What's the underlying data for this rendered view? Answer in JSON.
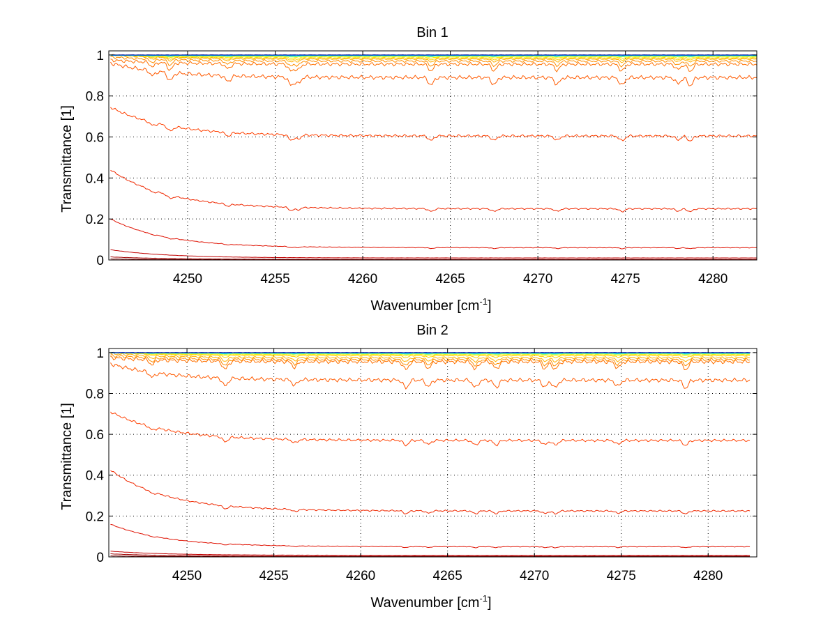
{
  "chart_data": [
    {
      "type": "line",
      "title": "Bin 1",
      "xlabel": "Wavenumber [cm",
      "xlabel_sup": "-1",
      "xlabel_end": "]",
      "ylabel": "Transmittance [1]",
      "xlim": [
        4245.5,
        4282.5
      ],
      "ylim": [
        0,
        1.02
      ],
      "xticks": [
        4250,
        4255,
        4260,
        4265,
        4270,
        4275,
        4280
      ],
      "yticks": [
        0,
        0.2,
        0.4,
        0.6,
        0.8,
        1
      ],
      "ytick_labels": [
        "0",
        "0.2",
        "0.4",
        "0.6",
        "0.8",
        "1"
      ],
      "grid": true,
      "x_range": [
        4245.6,
        4282.5
      ],
      "absorption_lines": [
        4248.0,
        4249.0,
        4252.3,
        4255.9,
        4256.3,
        4263.9,
        4267.5,
        4271.1,
        4274.8,
        4278.0,
        4278.7
      ],
      "series": [
        {
          "color": "#00008f",
          "start": 1.0,
          "end": 1.0,
          "rise_amp": 0.0,
          "depth": 0.0
        },
        {
          "color": "#0050ff",
          "start": 1.0,
          "end": 1.0,
          "rise_amp": 0.0,
          "depth": 0.0
        },
        {
          "color": "#00bfff",
          "start": 1.0,
          "end": 0.998,
          "rise_amp": 0.0,
          "depth": 0.002
        },
        {
          "color": "#40ffbf",
          "start": 1.0,
          "end": 0.996,
          "rise_amp": 0.004,
          "depth": 0.003
        },
        {
          "color": "#bfff40",
          "start": 1.0,
          "end": 0.994,
          "rise_amp": 0.005,
          "depth": 0.004
        },
        {
          "color": "#ffef00",
          "start": 1.0,
          "end": 0.99,
          "rise_amp": 0.01,
          "depth": 0.006
        },
        {
          "color": "#ffcf00",
          "start": 1.0,
          "end": 0.985,
          "rise_amp": 0.015,
          "depth": 0.01
        },
        {
          "color": "#ffaf00",
          "start": 1.0,
          "end": 0.98,
          "rise_amp": 0.02,
          "depth": 0.015
        },
        {
          "color": "#ff8f00",
          "start": 0.99,
          "end": 0.97,
          "rise_amp": 0.02,
          "depth": 0.025
        },
        {
          "color": "#ff7000",
          "start": 0.965,
          "end": 0.955,
          "rise_amp": 0.02,
          "depth": 0.035
        },
        {
          "color": "#ff5a00",
          "start": 0.96,
          "end": 0.89,
          "rise_amp": 0.07,
          "depth": 0.04
        },
        {
          "color": "#ff4000",
          "start": 0.76,
          "end": 0.605,
          "rise_amp": 0.14,
          "depth": 0.025
        },
        {
          "color": "#ef2800",
          "start": 0.45,
          "end": 0.25,
          "rise_amp": 0.19,
          "depth": 0.015
        },
        {
          "color": "#df1000",
          "start": 0.2,
          "end": 0.06,
          "rise_amp": 0.14,
          "depth": 0.005
        },
        {
          "color": "#c00000",
          "start": 0.05,
          "end": 0.01,
          "rise_amp": 0.04,
          "depth": 0.0
        },
        {
          "color": "#a00000",
          "start": 0.015,
          "end": 0.003,
          "rise_amp": 0.012,
          "depth": 0.0
        },
        {
          "color": "#800000",
          "start": 0.005,
          "end": 0.001,
          "rise_amp": 0.004,
          "depth": 0.0
        }
      ]
    },
    {
      "type": "line",
      "title": "Bin 2",
      "xlabel": "Wavenumber [cm",
      "xlabel_sup": "-1",
      "xlabel_end": "]",
      "ylabel": "Transmittance [1]",
      "xlim": [
        4245.5,
        4282.8
      ],
      "ylim": [
        0,
        1.02
      ],
      "xticks": [
        4250,
        4255,
        4260,
        4265,
        4270,
        4275,
        4280
      ],
      "yticks": [
        0,
        0.2,
        0.4,
        0.6,
        0.8,
        1
      ],
      "ytick_labels": [
        "0",
        "0.2",
        "0.4",
        "0.6",
        "0.8",
        "1"
      ],
      "grid": true,
      "x_range": [
        4245.6,
        4282.4
      ],
      "absorption_lines": [
        4248.0,
        4252.2,
        4256.2,
        4262.6,
        4263.9,
        4266.6,
        4267.8,
        4270.6,
        4271.2,
        4274.8,
        4278.7
      ],
      "series": [
        {
          "color": "#00008f",
          "start": 1.0,
          "end": 1.0,
          "rise_amp": 0.0,
          "depth": 0.0
        },
        {
          "color": "#0050ff",
          "start": 1.0,
          "end": 1.0,
          "rise_amp": 0.0,
          "depth": 0.0
        },
        {
          "color": "#00bfff",
          "start": 1.0,
          "end": 0.998,
          "rise_amp": 0.0,
          "depth": 0.002
        },
        {
          "color": "#40ffbf",
          "start": 1.0,
          "end": 0.996,
          "rise_amp": 0.004,
          "depth": 0.003
        },
        {
          "color": "#bfff40",
          "start": 1.0,
          "end": 0.994,
          "rise_amp": 0.005,
          "depth": 0.004
        },
        {
          "color": "#ffef00",
          "start": 1.0,
          "end": 0.99,
          "rise_amp": 0.01,
          "depth": 0.006
        },
        {
          "color": "#ffcf00",
          "start": 0.995,
          "end": 0.985,
          "rise_amp": 0.015,
          "depth": 0.01
        },
        {
          "color": "#ffaf00",
          "start": 0.99,
          "end": 0.975,
          "rise_amp": 0.02,
          "depth": 0.02
        },
        {
          "color": "#ff8f00",
          "start": 0.985,
          "end": 0.965,
          "rise_amp": 0.02,
          "depth": 0.03
        },
        {
          "color": "#ff7000",
          "start": 0.975,
          "end": 0.955,
          "rise_amp": 0.02,
          "depth": 0.04
        },
        {
          "color": "#ff5a00",
          "start": 0.94,
          "end": 0.865,
          "rise_amp": 0.08,
          "depth": 0.04
        },
        {
          "color": "#ff4000",
          "start": 0.73,
          "end": 0.57,
          "rise_amp": 0.14,
          "depth": 0.025
        },
        {
          "color": "#ef2800",
          "start": 0.44,
          "end": 0.225,
          "rise_amp": 0.2,
          "depth": 0.015
        },
        {
          "color": "#df1000",
          "start": 0.17,
          "end": 0.05,
          "rise_amp": 0.11,
          "depth": 0.005
        },
        {
          "color": "#c00000",
          "start": 0.03,
          "end": 0.008,
          "rise_amp": 0.02,
          "depth": 0.0
        },
        {
          "color": "#a00000",
          "start": 0.015,
          "end": 0.003,
          "rise_amp": 0.012,
          "depth": 0.0
        },
        {
          "color": "#800000",
          "start": 0.005,
          "end": 0.001,
          "rise_amp": 0.004,
          "depth": 0.0
        }
      ]
    }
  ]
}
